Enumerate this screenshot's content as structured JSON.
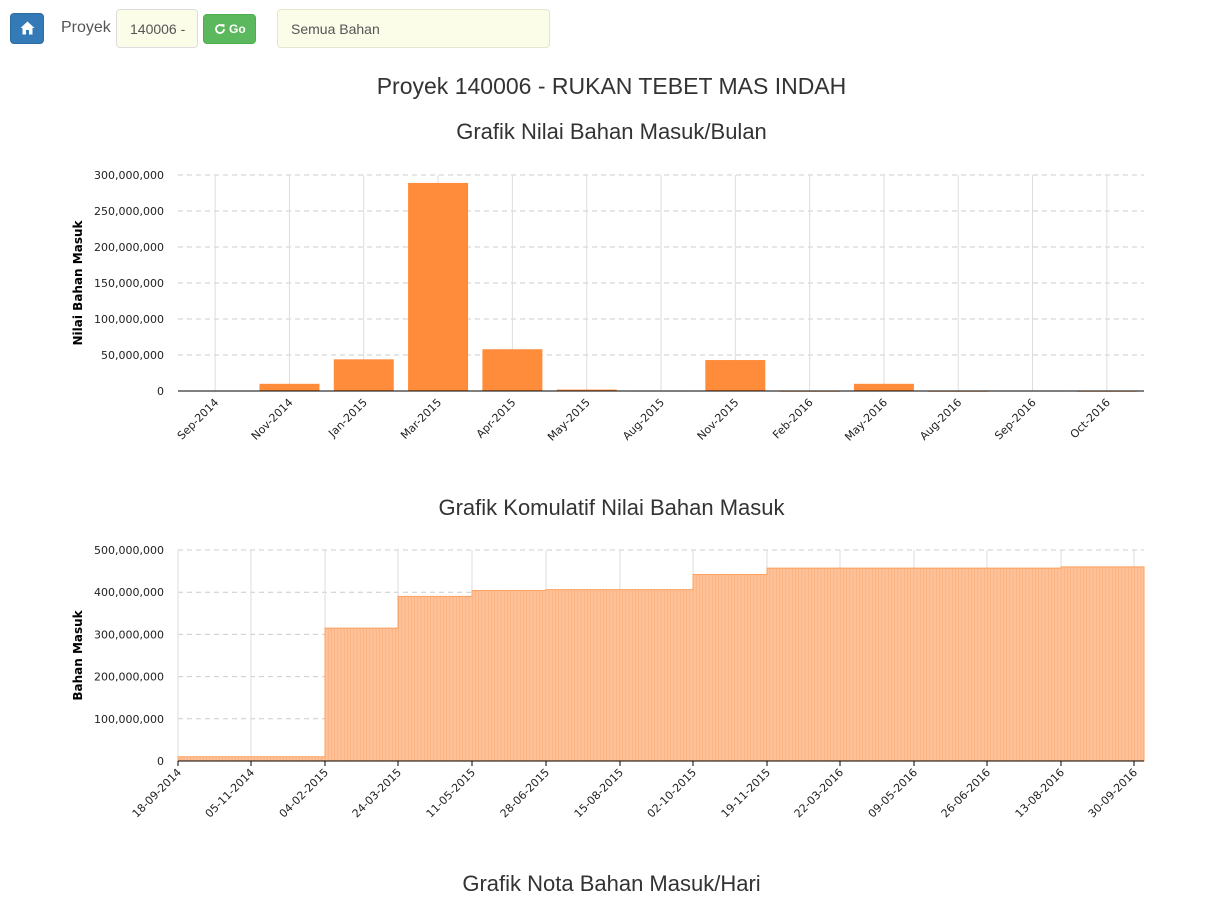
{
  "toolbar": {
    "home_icon": "home-icon",
    "proyek_label": "Proyek",
    "proyek_value": "140006 -",
    "go_label": "Go",
    "go_icon": "refresh-icon",
    "bahan_value": "Semua Bahan"
  },
  "page_title": "Proyek 140006 - RUKAN TEBET MAS INDAH",
  "chart_titles": {
    "monthly": "Grafik Nilai Bahan Masuk/Bulan",
    "cumulative": "Grafik Komulatif Nilai Bahan Masuk",
    "daily": "Grafik Nota Bahan Masuk/Hari"
  },
  "colors": {
    "bar": "#ff8c3a",
    "cumulative_fill": "#ffc299",
    "cumulative_stroke": "#ffa05c",
    "home_button": "#337ab7",
    "go_button": "#5cb85c"
  },
  "chart_data": [
    {
      "type": "bar",
      "title": "Grafik Nilai Bahan Masuk/Bulan",
      "ylabel": "Nilai Bahan Masuk",
      "xlabel": "",
      "ylim": [
        0,
        300000000
      ],
      "yticks": [
        0,
        50000000,
        100000000,
        150000000,
        200000000,
        250000000,
        300000000
      ],
      "ytick_labels": [
        "0",
        "50,000,000",
        "100,000,000",
        "150,000,000",
        "200,000,000",
        "250,000,000",
        "300,000,000"
      ],
      "grid": true,
      "categories": [
        "Sep-2014",
        "Nov-2014",
        "Jan-2015",
        "Mar-2015",
        "Apr-2015",
        "May-2015",
        "Aug-2015",
        "Nov-2015",
        "Feb-2016",
        "May-2016",
        "Aug-2016",
        "Sep-2016",
        "Oct-2016"
      ],
      "values": [
        500000,
        10000000,
        44000000,
        289000000,
        58000000,
        2000000,
        400000,
        43000000,
        100000,
        10000000,
        100000,
        400000,
        100000
      ]
    },
    {
      "type": "area",
      "title": "Grafik Komulatif Nilai Bahan Masuk",
      "ylabel": "Bahan Masuk",
      "xlabel": "",
      "ylim": [
        0,
        500000000
      ],
      "yticks": [
        0,
        100000000,
        200000000,
        300000000,
        400000000,
        500000000
      ],
      "ytick_labels": [
        "0",
        "100,000,000",
        "200,000,000",
        "300,000,000",
        "400,000,000",
        "500,000,000"
      ],
      "grid": true,
      "x_ticks": [
        "18-09-2014",
        "05-11-2014",
        "04-02-2015",
        "24-03-2015",
        "11-05-2015",
        "28-06-2015",
        "15-08-2015",
        "02-10-2015",
        "19-11-2015",
        "22-03-2016",
        "09-05-2016",
        "26-06-2016",
        "13-08-2016",
        "30-09-2016"
      ],
      "values": [
        {
          "x": "18-09-2014",
          "y": 10000000
        },
        {
          "x": "04-02-2015",
          "y": 55000000
        },
        {
          "x": "04-02-2015",
          "y": 315000000
        },
        {
          "x": "24-03-2015",
          "y": 345000000
        },
        {
          "x": "24-03-2015",
          "y": 390000000
        },
        {
          "x": "11-05-2015",
          "y": 402000000
        },
        {
          "x": "11-05-2015",
          "y": 404000000
        },
        {
          "x": "28-06-2015",
          "y": 406000000
        },
        {
          "x": "15-08-2015",
          "y": 406000000
        },
        {
          "x": "02-10-2015",
          "y": 442000000
        },
        {
          "x": "19-11-2015",
          "y": 442000000
        },
        {
          "x": "19-11-2015",
          "y": 457000000
        },
        {
          "x": "13-08-2016",
          "y": 457000000
        },
        {
          "x": "13-08-2016",
          "y": 460000000
        },
        {
          "x": "30-09-2016",
          "y": 460000000
        }
      ]
    }
  ]
}
